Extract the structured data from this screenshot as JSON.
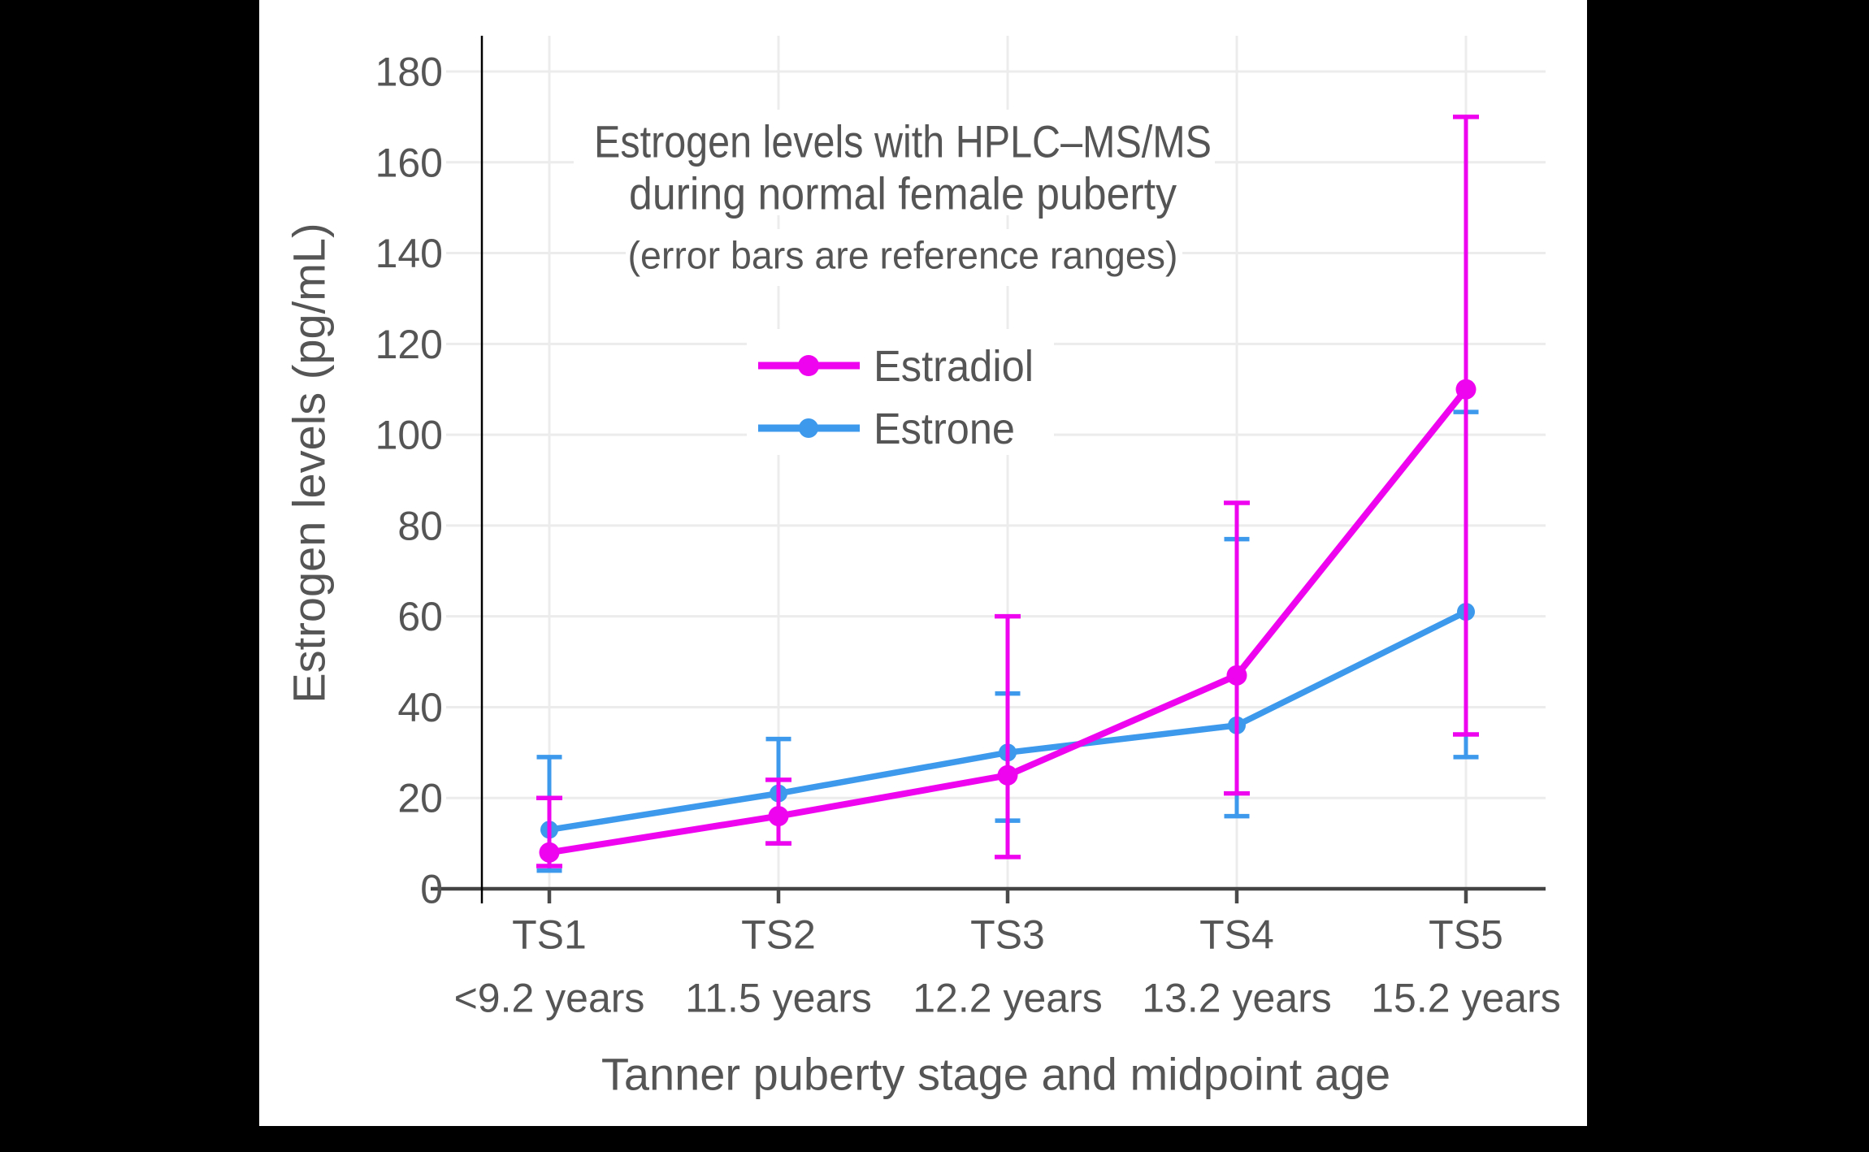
{
  "canvas": {
    "background": "#000000",
    "panel_background": "#FFFFFF"
  },
  "chart_data": {
    "type": "line",
    "title": "Estrogen levels with HPLC–MS/MS",
    "title_line2": "during normal female puberty",
    "subtitle": "(error bars are reference ranges)",
    "xlabel": "Tanner puberty stage and midpoint age",
    "ylabel": "Estrogen levels (pg/mL)",
    "categories": [
      "TS1",
      "TS2",
      "TS3",
      "TS4",
      "TS5"
    ],
    "category_sublabels": [
      "<9.2 years",
      "11.5 years",
      "12.2 years",
      "13.2 years",
      "15.2 years"
    ],
    "ylim": [
      0,
      180
    ],
    "ytick_step": 20,
    "ytick_labels": [
      "0",
      "20",
      "40",
      "60",
      "80",
      "100",
      "120",
      "140",
      "160",
      "180"
    ],
    "grid": true,
    "error_bar_meaning": "reference ranges",
    "legend": {
      "position": "upper-center",
      "background": "#FFFFFF",
      "entries": [
        "Estradiol",
        "Estrone"
      ]
    },
    "series": [
      {
        "name": "Estradiol",
        "color": "#EF04EF",
        "values": [
          8,
          16,
          25,
          47,
          110
        ],
        "err_low": [
          5,
          10,
          7,
          21,
          34
        ],
        "err_high": [
          20,
          24,
          60,
          85,
          170
        ]
      },
      {
        "name": "Estrone",
        "color": "#3C99EC",
        "values": [
          13,
          21,
          30,
          36,
          61
        ],
        "err_low": [
          4,
          10,
          15,
          16,
          29
        ],
        "err_high": [
          29,
          33,
          43,
          77,
          105
        ]
      }
    ],
    "colors": {
      "text": "#555555",
      "gridline": "#ECECEC",
      "x_axis_line": "#444444",
      "y_axis_spine": "#000000",
      "tick": "#4A4A4A"
    }
  }
}
